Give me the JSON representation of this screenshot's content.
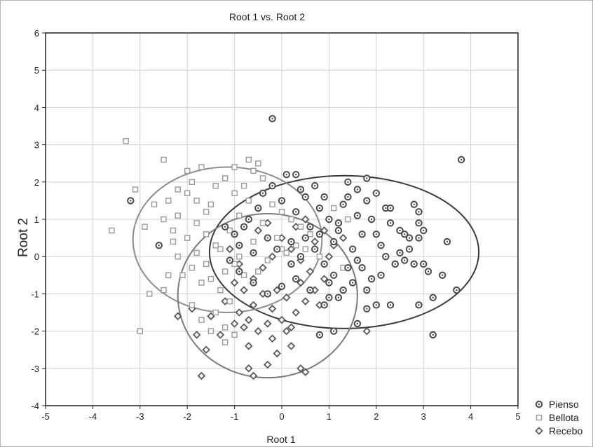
{
  "chart_data": {
    "type": "scatter",
    "title": "Root 1 vs. Root 2",
    "xlabel": "Root 1",
    "ylabel": "Root 2",
    "xlim": [
      -5,
      5
    ],
    "ylim": [
      -4,
      6
    ],
    "x_ticks": [
      "-5",
      "-4",
      "-3",
      "-2",
      "-1",
      "0",
      "1",
      "2",
      "3",
      "4",
      "5"
    ],
    "y_ticks": [
      "-4",
      "-3",
      "-2",
      "-1",
      "0",
      "1",
      "2",
      "3",
      "4",
      "5",
      "6"
    ],
    "grid": true,
    "legend_position": "bottom-right",
    "series": [
      {
        "name": "Pienso",
        "marker": "circle-cross",
        "color": "#4a4a4a",
        "ellipse": {
          "cx": 1.32,
          "cy": 0.12,
          "rx": 2.85,
          "ry": 2.05,
          "color": "#3a3a3a"
        },
        "points": [
          [
            -0.2,
            3.7
          ],
          [
            3.8,
            2.6
          ],
          [
            -3.2,
            1.5
          ],
          [
            -2.6,
            0.3
          ],
          [
            0.1,
            2.2
          ],
          [
            0.3,
            2.2
          ],
          [
            1.4,
            2.0
          ],
          [
            1.6,
            1.8
          ],
          [
            1.8,
            2.1
          ],
          [
            2.0,
            1.7
          ],
          [
            2.2,
            1.3
          ],
          [
            2.3,
            1.3
          ],
          [
            2.8,
            1.4
          ],
          [
            2.9,
            1.2
          ],
          [
            2.9,
            0.9
          ],
          [
            3.0,
            0.7
          ],
          [
            2.5,
            0.7
          ],
          [
            2.6,
            0.6
          ],
          [
            2.7,
            0.5
          ],
          [
            2.9,
            0.5
          ],
          [
            2.5,
            0.1
          ],
          [
            2.6,
            -0.1
          ],
          [
            2.8,
            -0.2
          ],
          [
            3.0,
            -0.2
          ],
          [
            3.1,
            -0.4
          ],
          [
            3.4,
            -0.5
          ],
          [
            3.5,
            0.4
          ],
          [
            3.7,
            -0.9
          ],
          [
            3.2,
            -1.1
          ],
          [
            3.2,
            -2.1
          ],
          [
            2.9,
            -1.3
          ],
          [
            2.3,
            -1.3
          ],
          [
            2.0,
            -1.3
          ],
          [
            1.8,
            -1.4
          ],
          [
            1.6,
            -1.8
          ],
          [
            1.1,
            -2.0
          ],
          [
            0.8,
            -2.1
          ],
          [
            1.0,
            -1.1
          ],
          [
            1.3,
            -0.9
          ],
          [
            1.8,
            -0.9
          ],
          [
            2.1,
            -0.5
          ],
          [
            1.7,
            -0.3
          ],
          [
            1.9,
            -0.6
          ],
          [
            2.2,
            0.0
          ],
          [
            1.5,
            0.2
          ],
          [
            1.2,
            0.7
          ],
          [
            1.0,
            1.0
          ],
          [
            0.8,
            1.3
          ],
          [
            0.5,
            1.6
          ],
          [
            0.7,
            1.9
          ],
          [
            0.4,
            1.8
          ],
          [
            0.9,
            1.6
          ],
          [
            1.3,
            1.4
          ],
          [
            1.6,
            1.1
          ],
          [
            1.9,
            1.0
          ],
          [
            2.0,
            0.6
          ],
          [
            2.1,
            0.3
          ],
          [
            1.1,
            0.4
          ],
          [
            0.6,
            0.8
          ],
          [
            0.3,
            1.2
          ],
          [
            0.0,
            1.5
          ],
          [
            -0.2,
            1.9
          ],
          [
            -0.4,
            1.7
          ],
          [
            -0.5,
            1.3
          ],
          [
            -0.7,
            1.0
          ],
          [
            -0.8,
            0.8
          ],
          [
            -1.0,
            0.6
          ],
          [
            -1.2,
            0.8
          ],
          [
            -0.9,
            0.3
          ],
          [
            -0.6,
            0.1
          ],
          [
            -0.3,
            0.5
          ],
          [
            0.2,
            0.4
          ],
          [
            0.4,
            0.0
          ],
          [
            0.7,
            0.2
          ],
          [
            0.9,
            -0.2
          ],
          [
            1.1,
            -0.5
          ],
          [
            1.4,
            -0.3
          ],
          [
            1.5,
            -0.7
          ],
          [
            1.2,
            -1.1
          ],
          [
            0.9,
            -1.3
          ],
          [
            0.6,
            -0.9
          ],
          [
            0.3,
            -0.6
          ],
          [
            0.0,
            -0.8
          ],
          [
            -0.3,
            -1.0
          ],
          [
            -0.6,
            -0.7
          ],
          [
            -0.9,
            -0.4
          ],
          [
            -1.1,
            -0.1
          ],
          [
            1.7,
            0.6
          ],
          [
            2.3,
            0.9
          ],
          [
            1.8,
            1.5
          ],
          [
            1.4,
            1.6
          ],
          [
            1.2,
            0.9
          ],
          [
            0.5,
            0.5
          ],
          [
            0.2,
            -0.2
          ],
          [
            -0.1,
            0.2
          ],
          [
            0.8,
            0.6
          ],
          [
            1.0,
            -0.7
          ],
          [
            1.6,
            -0.1
          ],
          [
            2.4,
            -0.2
          ],
          [
            2.7,
            0.2
          ]
        ]
      },
      {
        "name": "Bellota",
        "marker": "square",
        "color": "#9a9a9a",
        "ellipse": {
          "cx": -1.15,
          "cy": 0.45,
          "rx": 2.0,
          "ry": 1.95,
          "color": "#8c8c8c"
        },
        "points": [
          [
            -3.3,
            3.1
          ],
          [
            -3.6,
            0.7
          ],
          [
            -3.0,
            -2.0
          ],
          [
            -2.8,
            -1.0
          ],
          [
            -2.5,
            -0.9
          ],
          [
            -2.4,
            -0.5
          ],
          [
            -2.3,
            0.4
          ],
          [
            -2.5,
            1.0
          ],
          [
            -2.4,
            1.5
          ],
          [
            -2.5,
            2.6
          ],
          [
            -2.2,
            1.8
          ],
          [
            -2.0,
            1.7
          ],
          [
            -1.8,
            1.5
          ],
          [
            -1.6,
            1.2
          ],
          [
            -1.8,
            0.9
          ],
          [
            -2.0,
            0.5
          ],
          [
            -2.2,
            0.0
          ],
          [
            -1.9,
            -0.3
          ],
          [
            -1.7,
            -0.7
          ],
          [
            -1.5,
            -0.6
          ],
          [
            -1.3,
            -0.9
          ],
          [
            -1.1,
            -1.2
          ],
          [
            -1.4,
            -1.5
          ],
          [
            -1.2,
            -1.9
          ],
          [
            -1.0,
            -2.1
          ],
          [
            -1.2,
            -2.3
          ],
          [
            -1.5,
            -2.0
          ],
          [
            -1.7,
            -1.7
          ],
          [
            -1.9,
            -1.3
          ],
          [
            -1.6,
            -0.2
          ],
          [
            -1.3,
            0.2
          ],
          [
            -1.1,
            0.7
          ],
          [
            -0.9,
            1.1
          ],
          [
            -0.7,
            1.5
          ],
          [
            -0.8,
            1.9
          ],
          [
            -0.6,
            2.3
          ],
          [
            -0.4,
            2.1
          ],
          [
            -0.7,
            2.6
          ],
          [
            -1.0,
            2.4
          ],
          [
            -1.2,
            2.1
          ],
          [
            -1.4,
            1.9
          ],
          [
            -1.7,
            2.4
          ],
          [
            -2.0,
            2.3
          ],
          [
            -1.6,
            0.6
          ],
          [
            -0.4,
            1.7
          ],
          [
            -0.2,
            1.4
          ],
          [
            0.0,
            1.2
          ],
          [
            0.2,
            1.0
          ],
          [
            0.4,
            0.8
          ],
          [
            0.6,
            0.6
          ],
          [
            0.3,
            0.3
          ],
          [
            0.0,
            0.2
          ],
          [
            -0.3,
            -0.1
          ],
          [
            -0.5,
            -0.4
          ],
          [
            -0.8,
            -0.5
          ],
          [
            -1.0,
            -0.2
          ],
          [
            -0.6,
            0.4
          ],
          [
            -0.4,
            0.9
          ],
          [
            -0.1,
            0.5
          ],
          [
            0.1,
            0.1
          ],
          [
            0.5,
            0.2
          ],
          [
            0.8,
            0.0
          ],
          [
            -2.1,
            -0.5
          ],
          [
            -2.7,
            1.4
          ],
          [
            -2.9,
            0.8
          ],
          [
            -3.1,
            1.8
          ],
          [
            -2.2,
            1.1
          ],
          [
            -1.4,
            0.3
          ],
          [
            -1.8,
            0.1
          ],
          [
            -1.2,
            -0.4
          ],
          [
            -0.9,
            0.0
          ],
          [
            -1.5,
            1.4
          ],
          [
            -1.9,
            2.0
          ],
          [
            -2.3,
            0.7
          ],
          [
            -0.5,
            2.5
          ],
          [
            0.9,
            1.6
          ],
          [
            1.1,
            1.3
          ],
          [
            1.4,
            1.0
          ],
          [
            1.3,
            -0.3
          ],
          [
            -1.0,
            1.7
          ]
        ]
      },
      {
        "name": "Recebo",
        "marker": "diamond",
        "color": "#5a5a5a",
        "ellipse": {
          "cx": -0.3,
          "cy": -1.05,
          "rx": 1.9,
          "ry": 2.2,
          "color": "#7a7a7a"
        },
        "points": [
          [
            -1.7,
            -3.2
          ],
          [
            -0.7,
            -3.0
          ],
          [
            -0.6,
            -3.2
          ],
          [
            -0.3,
            -2.9
          ],
          [
            0.4,
            -3.0
          ],
          [
            0.5,
            -3.1
          ],
          [
            0.2,
            -2.4
          ],
          [
            -0.1,
            -2.6
          ],
          [
            -0.2,
            -2.2
          ],
          [
            -0.5,
            -2.0
          ],
          [
            -0.7,
            -2.4
          ],
          [
            -0.8,
            -1.9
          ],
          [
            -1.0,
            -1.8
          ],
          [
            -1.3,
            -2.1
          ],
          [
            -1.6,
            -2.5
          ],
          [
            -1.8,
            -2.1
          ],
          [
            -1.9,
            -1.4
          ],
          [
            -2.2,
            -1.6
          ],
          [
            -1.5,
            -1.6
          ],
          [
            -1.2,
            -1.2
          ],
          [
            -0.9,
            -1.5
          ],
          [
            -0.6,
            -1.3
          ],
          [
            -0.4,
            -1.0
          ],
          [
            -0.2,
            -1.4
          ],
          [
            0.0,
            -1.7
          ],
          [
            0.2,
            -1.9
          ],
          [
            0.3,
            -1.5
          ],
          [
            0.5,
            -1.2
          ],
          [
            0.7,
            -0.9
          ],
          [
            0.9,
            -0.6
          ],
          [
            0.6,
            -0.4
          ],
          [
            0.4,
            -0.1
          ],
          [
            0.2,
            0.2
          ],
          [
            0.0,
            0.5
          ],
          [
            -0.2,
            0.0
          ],
          [
            -0.4,
            -0.3
          ],
          [
            -0.6,
            -0.6
          ],
          [
            -0.8,
            -0.9
          ],
          [
            -1.0,
            -0.7
          ],
          [
            -0.9,
            -0.2
          ],
          [
            -0.5,
            0.7
          ],
          [
            0.3,
            0.8
          ],
          [
            0.7,
            0.4
          ],
          [
            1.0,
            0.0
          ],
          [
            1.1,
            0.3
          ],
          [
            0.9,
            0.7
          ],
          [
            0.5,
            1.0
          ],
          [
            -0.3,
            0.9
          ],
          [
            -1.1,
            0.2
          ],
          [
            1.8,
            -2.0
          ],
          [
            0.1,
            -2.0
          ],
          [
            0.8,
            -1.3
          ],
          [
            0.4,
            -0.7
          ],
          [
            -0.1,
            -0.9
          ],
          [
            1.3,
            0.5
          ],
          [
            -0.7,
            -1.7
          ],
          [
            -0.3,
            -1.8
          ],
          [
            0.1,
            -1.1
          ]
        ]
      }
    ]
  }
}
